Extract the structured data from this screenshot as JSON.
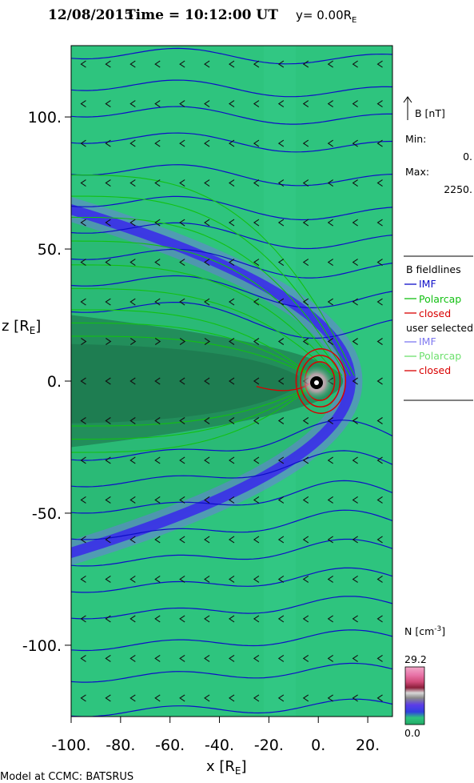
{
  "header": {
    "date": "12/08/2015",
    "time_text": "Time = 10:12:00 UT",
    "y_label": "y= 0.00R",
    "y_sub": "E"
  },
  "chart_data": {
    "type": "heatmap",
    "title": "12/08/2015 Time = 10:12:00 UT y= 0.00RE",
    "xlabel": "x [RE]",
    "ylabel": "z [RE]",
    "xlim": [
      -100,
      30
    ],
    "ylim": [
      -127,
      127
    ],
    "x_ticks": [
      {
        "v": -100,
        "label": "-100."
      },
      {
        "v": -80,
        "label": "-80."
      },
      {
        "v": -60,
        "label": "-60."
      },
      {
        "v": -40,
        "label": "-40."
      },
      {
        "v": -20,
        "label": "-20."
      },
      {
        "v": 0,
        "label": "0."
      },
      {
        "v": 20,
        "label": "20."
      }
    ],
    "y_ticks": [
      {
        "v": 100,
        "label": "100."
      },
      {
        "v": 50,
        "label": "50."
      },
      {
        "v": 0,
        "label": "0."
      },
      {
        "v": -50,
        "label": "-50."
      },
      {
        "v": -100,
        "label": "-100."
      }
    ],
    "grid": false,
    "bow_shock_nose_x": 13,
    "bow_shock_tail_z_at_xmin": 65,
    "magnetopause_nose_x": 10,
    "magnetopause_tail_z_at_xmin": 25,
    "imf_line_z": [
      -125,
      -112,
      -100,
      -88,
      -78,
      -68,
      -58,
      -48,
      -38,
      -28,
      28,
      38,
      48,
      58,
      68,
      80,
      92,
      102,
      112,
      124
    ],
    "polarcap_line_z": [
      -27,
      -22,
      -17,
      17,
      22,
      27,
      35,
      44,
      53,
      62,
      70,
      78
    ],
    "closed_loops_x": [
      6,
      8,
      10
    ],
    "arrow_rows_z": [
      -120,
      -105,
      -90,
      -75,
      -60,
      -45,
      -30,
      -15,
      0,
      15,
      30,
      45,
      60,
      75,
      90,
      105,
      120
    ]
  },
  "legend": {
    "b_label": "B [nT]",
    "min_label": "Min:",
    "min_value": "0.",
    "max_label": "Max:",
    "max_value": "2250.",
    "fieldlines_title": "B fieldlines",
    "imf": "IMF",
    "polarcap": "Polarcap",
    "closed": "closed",
    "user_selected": "user selected",
    "user_imf": "IMF",
    "user_polarcap": "Polarcap",
    "user_closed": "closed"
  },
  "colorbar": {
    "label": "N [cm",
    "label_exp": "-3",
    "label_close": "]",
    "max": "29.2",
    "min": "0.0"
  },
  "colors": {
    "background": "#2ec47e",
    "tail": "#208a58",
    "imf": "#0e0ec8",
    "polarcap": "#13c013",
    "closed": "#d90000",
    "bowshock": "#4a3df0"
  },
  "footer": {
    "credit": "Model at CCMC: BATSRUS"
  }
}
